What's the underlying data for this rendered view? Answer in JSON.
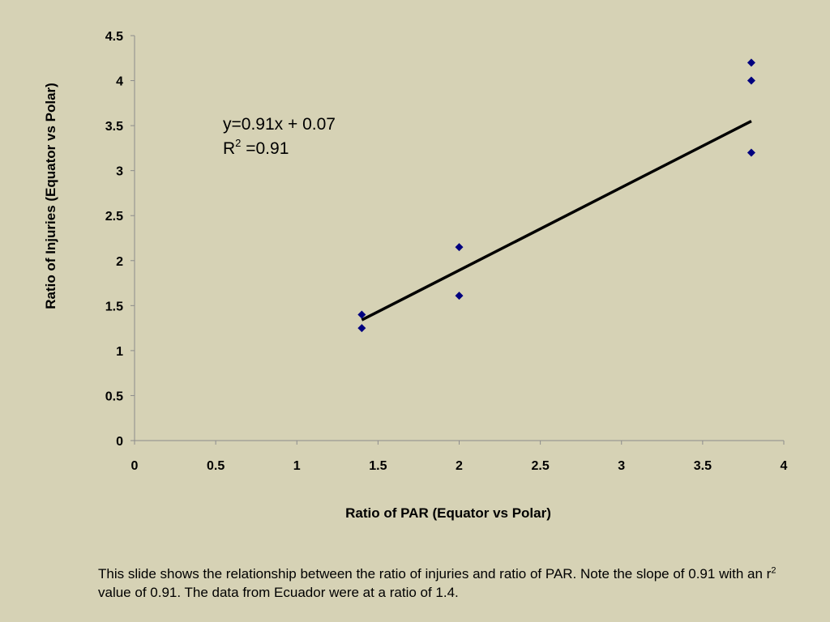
{
  "chart_data": {
    "type": "scatter",
    "xlabel": "Ratio of PAR (Equator vs Polar)",
    "ylabel": "Ratio of Injuries (Equator vs Polar)",
    "xlim": [
      0,
      4
    ],
    "ylim": [
      0,
      4.5
    ],
    "x_ticks": [
      "0",
      "0.5",
      "1",
      "1.5",
      "2",
      "2.5",
      "3",
      "3.5",
      "4"
    ],
    "y_ticks": [
      "0",
      "0.5",
      "1",
      "1.5",
      "2",
      "2.5",
      "3",
      "3.5",
      "4",
      "4.5"
    ],
    "grid": false,
    "point_color": "#00007f",
    "points": [
      {
        "x": 1.4,
        "y": 1.4
      },
      {
        "x": 1.4,
        "y": 1.25
      },
      {
        "x": 2.0,
        "y": 2.15
      },
      {
        "x": 2.0,
        "y": 1.61
      },
      {
        "x": 3.8,
        "y": 4.2
      },
      {
        "x": 3.8,
        "y": 4.0
      },
      {
        "x": 3.8,
        "y": 3.2
      }
    ],
    "trendline": {
      "x_start": 1.4,
      "x_end": 3.8,
      "y_start": 1.34,
      "y_end": 3.55,
      "color": "#000000"
    },
    "annotation": {
      "line1": "y=0.91x + 0.07",
      "line2_prefix": "R",
      "line2_sup": "2",
      "line2_suffix": " =0.91"
    }
  },
  "caption": {
    "part1": "This slide shows the relationship between the ratio of injuries and ratio of PAR. Note the slope of 0.91 with an r",
    "sup": "2",
    "part2": " value of 0.91. The data from Ecuador were at a ratio of 1.4."
  }
}
